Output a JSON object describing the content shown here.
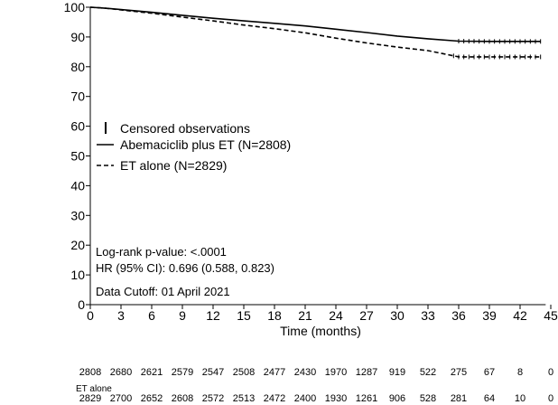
{
  "chart_data": {
    "type": "line",
    "xlabel": "Time (months)",
    "ylabel": "",
    "xlim": [
      0,
      45
    ],
    "ylim": [
      0,
      100
    ],
    "x_ticks": [
      0,
      3,
      6,
      9,
      12,
      15,
      18,
      21,
      24,
      27,
      30,
      33,
      36,
      39,
      42,
      45
    ],
    "y_ticks": [
      0,
      10,
      20,
      30,
      40,
      50,
      60,
      70,
      80,
      90,
      100
    ],
    "grid": false,
    "legend_position": "center-left",
    "legend": {
      "censored_label": "Censored observations",
      "entries": [
        {
          "label": "Abemaciclib plus ET (N=2808)",
          "style": "solid"
        },
        {
          "label": "ET alone (N=2829)",
          "style": "dashed"
        }
      ]
    },
    "annotations": [
      "Log-rank p-value: <.0001",
      "HR (95% CI): 0.696 (0.588, 0.823)",
      "Data Cutoff: 01 April 2021"
    ],
    "series": [
      {
        "name": "Abemaciclib plus ET (N=2808)",
        "style": "solid",
        "x": [
          0,
          1,
          2,
          3,
          6,
          9,
          12,
          15,
          18,
          21,
          24,
          27,
          30,
          33,
          36,
          39,
          42,
          44
        ],
        "y": [
          100,
          99.8,
          99.5,
          99.2,
          98.3,
          97.3,
          96.3,
          95.4,
          94.6,
          93.7,
          92.6,
          91.5,
          90.3,
          89.4,
          88.6,
          88.5,
          88.5,
          88.5
        ]
      },
      {
        "name": "ET alone (N=2829)",
        "style": "dashed",
        "x": [
          0,
          1,
          2,
          3,
          6,
          9,
          12,
          15,
          18,
          21,
          24,
          27,
          30,
          33,
          35,
          36,
          39,
          42,
          44
        ],
        "y": [
          100,
          99.8,
          99.5,
          99.1,
          98.0,
          96.7,
          95.4,
          94.0,
          92.8,
          91.4,
          89.6,
          88.0,
          86.6,
          85.4,
          84.0,
          83.3,
          83.3,
          83.3,
          83.3
        ]
      }
    ],
    "risk_table": {
      "rows": [
        {
          "label": "",
          "values": [
            "2808",
            "2680",
            "2621",
            "2579",
            "2547",
            "2508",
            "2477",
            "2430",
            "1970",
            "1287",
            "919",
            "522",
            "275",
            "67",
            "8",
            "0"
          ]
        },
        {
          "label": "ET alone",
          "values": [
            "2829",
            "2700",
            "2652",
            "2608",
            "2572",
            "2513",
            "2472",
            "2400",
            "1930",
            "1261",
            "906",
            "528",
            "281",
            "64",
            "10",
            "0"
          ]
        }
      ]
    }
  }
}
